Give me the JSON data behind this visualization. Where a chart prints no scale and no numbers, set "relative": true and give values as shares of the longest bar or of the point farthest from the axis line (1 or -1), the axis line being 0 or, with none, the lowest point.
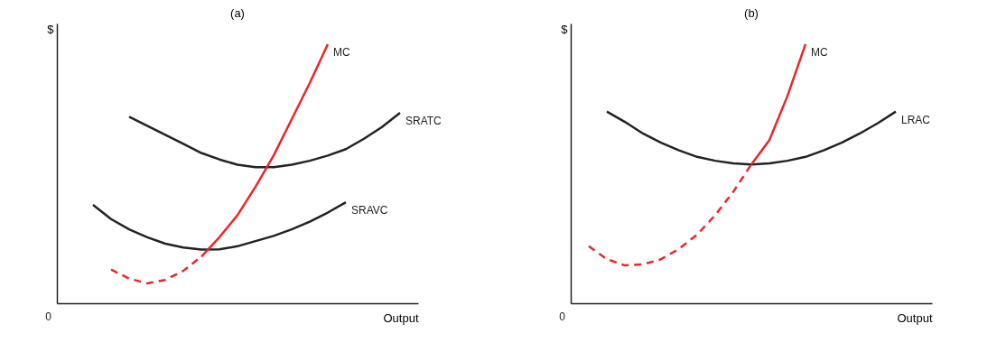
{
  "chart_data": [
    {
      "type": "line",
      "title": "(a)",
      "xlabel": "Output",
      "ylabel": "$",
      "relative": true,
      "tick_labels": false,
      "annotations": [
        "0"
      ],
      "categories": [
        null,
        null,
        null,
        null,
        null,
        null,
        null,
        null,
        null,
        null,
        null,
        null,
        null,
        null,
        null,
        null,
        null,
        null,
        null,
        null,
        null
      ],
      "series": [
        {
          "name": "SRATC",
          "color": "#222222",
          "line_style": "solid",
          "values": [
            null,
            null,
            null,
            null,
            0.72,
            0.685,
            0.65,
            0.615,
            0.58,
            0.555,
            0.535,
            0.525,
            0.525,
            0.535,
            0.55,
            0.57,
            0.595,
            0.635,
            0.68,
            0.735,
            null
          ]
        },
        {
          "name": "SRAVC",
          "color": "#222222",
          "line_style": "solid",
          "values": [
            null,
            null,
            0.38,
            0.325,
            0.285,
            0.255,
            0.23,
            0.215,
            0.207,
            0.208,
            0.22,
            0.24,
            0.26,
            0.285,
            0.315,
            0.35,
            0.39,
            null,
            null,
            null,
            null
          ]
        },
        {
          "color": "#e8262a",
          "line_style": "dashed",
          "values": [
            null,
            null,
            null,
            0.13,
            0.095,
            0.077,
            0.09,
            0.125,
            0.18,
            null,
            null,
            null,
            null,
            null,
            null,
            null,
            null,
            null,
            null,
            null,
            null
          ]
        },
        {
          "name": "MC",
          "color": "#e8262a",
          "line_style": "solid",
          "values": [
            null,
            null,
            null,
            null,
            null,
            null,
            null,
            null,
            0.18,
            0.255,
            0.34,
            0.45,
            0.57,
            0.71,
            0.85,
            1,
            null,
            null,
            null,
            null,
            null
          ]
        }
      ]
    },
    {
      "type": "line",
      "title": "(b)",
      "xlabel": "Output",
      "ylabel": "$",
      "relative": true,
      "tick_labels": false,
      "annotations": [
        "0"
      ],
      "categories": [
        null,
        null,
        null,
        null,
        null,
        null,
        null,
        null,
        null,
        null,
        null,
        null,
        null,
        null,
        null,
        null,
        null,
        null,
        null,
        null,
        null
      ],
      "series": [
        {
          "name": "LRAC",
          "color": "#222222",
          "line_style": "solid",
          "values": [
            null,
            null,
            0.74,
            0.7,
            0.655,
            0.62,
            0.59,
            0.565,
            0.55,
            0.54,
            0.536,
            0.54,
            0.55,
            0.565,
            0.59,
            0.62,
            0.655,
            0.695,
            0.74,
            null,
            null
          ]
        },
        {
          "color": "#e8262a",
          "line_style": "dashed",
          "values": [
            null,
            0.22,
            0.17,
            0.146,
            0.15,
            0.17,
            0.21,
            0.265,
            0.34,
            0.43,
            0.536,
            null,
            null,
            null,
            null,
            null,
            null,
            null,
            null,
            null,
            null
          ]
        },
        {
          "name": "MC",
          "color": "#e8262a",
          "line_style": "solid",
          "values": [
            null,
            null,
            null,
            null,
            null,
            null,
            null,
            null,
            null,
            null,
            0.536,
            0.63,
            0.8,
            1,
            null,
            null,
            null,
            null,
            null,
            null,
            null
          ]
        }
      ]
    }
  ]
}
